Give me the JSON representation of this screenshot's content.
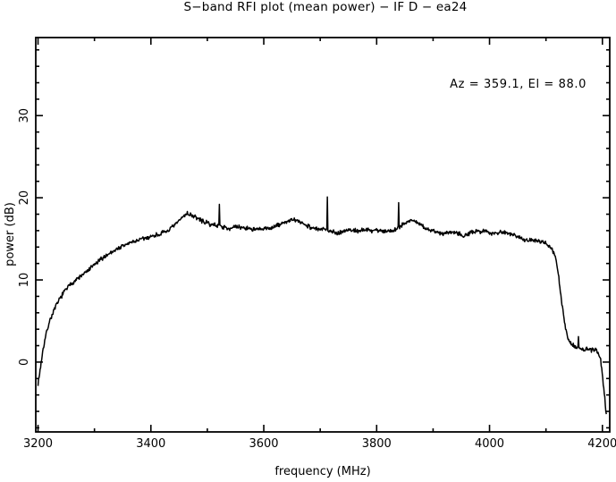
{
  "page": {
    "background": "#ffffff",
    "foreground": "#000000"
  },
  "chart_data": {
    "type": "line",
    "title": "S−band RFI plot (mean power) − IF D − ea24",
    "xlabel": "frequency (MHz)",
    "ylabel": "power (dB)",
    "annotation": "Az = 359.1, El = 88.0",
    "azimuth_deg": 359.1,
    "elevation_deg": 88.0,
    "antenna": "ea24",
    "if_channel": "D",
    "band": "S-band",
    "xlim": [
      3196,
      4213
    ],
    "ylim": [
      -8.5,
      39.5
    ],
    "xticks_major": [
      3200,
      3400,
      3600,
      3800,
      4000,
      4200
    ],
    "xtick_minor_step": 100,
    "yticks_major": [
      0,
      10,
      20,
      30
    ],
    "ytick_minor_step": 2,
    "grid": false,
    "legend": null,
    "line_color": "#000000",
    "series": [
      {
        "name": "mean power",
        "anchors": [
          [
            3200,
            -2.6
          ],
          [
            3202,
            -1.8
          ],
          [
            3205,
            -0.3
          ],
          [
            3209,
            1.6
          ],
          [
            3214,
            3.3
          ],
          [
            3220,
            4.9
          ],
          [
            3227,
            6.1
          ],
          [
            3234,
            7.1
          ],
          [
            3241,
            8.0
          ],
          [
            3249,
            8.8
          ],
          [
            3257,
            9.4
          ],
          [
            3265,
            9.9
          ],
          [
            3273,
            10.3
          ],
          [
            3281,
            10.7
          ],
          [
            3290,
            11.2
          ],
          [
            3299,
            11.8
          ],
          [
            3308,
            12.3
          ],
          [
            3317,
            12.8
          ],
          [
            3326,
            13.2
          ],
          [
            3335,
            13.6
          ],
          [
            3344,
            13.9
          ],
          [
            3353,
            14.2
          ],
          [
            3362,
            14.5
          ],
          [
            3371,
            14.7
          ],
          [
            3381,
            14.9
          ],
          [
            3391,
            15.1
          ],
          [
            3401,
            15.3
          ],
          [
            3411,
            15.5
          ],
          [
            3421,
            15.7
          ],
          [
            3430,
            16.0
          ],
          [
            3440,
            16.5
          ],
          [
            3450,
            17.2
          ],
          [
            3458,
            17.8
          ],
          [
            3464,
            18.1
          ],
          [
            3472,
            17.9
          ],
          [
            3480,
            17.6
          ],
          [
            3490,
            17.2
          ],
          [
            3500,
            16.9
          ],
          [
            3510,
            16.7
          ],
          [
            3520,
            16.6
          ],
          [
            3530,
            16.4
          ],
          [
            3540,
            16.3
          ],
          [
            3550,
            16.4
          ],
          [
            3560,
            16.4
          ],
          [
            3570,
            16.3
          ],
          [
            3580,
            16.2
          ],
          [
            3590,
            16.1
          ],
          [
            3600,
            16.2
          ],
          [
            3610,
            16.3
          ],
          [
            3620,
            16.5
          ],
          [
            3630,
            16.8
          ],
          [
            3640,
            17.1
          ],
          [
            3650,
            17.3
          ],
          [
            3658,
            17.2
          ],
          [
            3666,
            17.0
          ],
          [
            3675,
            16.7
          ],
          [
            3684,
            16.4
          ],
          [
            3693,
            16.2
          ],
          [
            3702,
            16.1
          ],
          [
            3711,
            16.2
          ],
          [
            3719,
            16.0
          ],
          [
            3727,
            15.7
          ],
          [
            3735,
            15.8
          ],
          [
            3744,
            16.0
          ],
          [
            3753,
            16.1
          ],
          [
            3762,
            16.0
          ],
          [
            3771,
            16.0
          ],
          [
            3780,
            16.1
          ],
          [
            3789,
            16.0
          ],
          [
            3798,
            16.1
          ],
          [
            3807,
            16.0
          ],
          [
            3816,
            15.9
          ],
          [
            3825,
            16.0
          ],
          [
            3834,
            16.2
          ],
          [
            3843,
            16.6
          ],
          [
            3852,
            17.0
          ],
          [
            3860,
            17.3
          ],
          [
            3868,
            17.1
          ],
          [
            3876,
            16.8
          ],
          [
            3884,
            16.4
          ],
          [
            3893,
            16.1
          ],
          [
            3902,
            15.9
          ],
          [
            3911,
            15.7
          ],
          [
            3920,
            15.7
          ],
          [
            3929,
            15.8
          ],
          [
            3938,
            15.9
          ],
          [
            3947,
            15.6
          ],
          [
            3954,
            15.4
          ],
          [
            3962,
            15.6
          ],
          [
            3971,
            15.8
          ],
          [
            3980,
            15.9
          ],
          [
            3989,
            16.0
          ],
          [
            3998,
            15.8
          ],
          [
            4007,
            15.7
          ],
          [
            4016,
            15.8
          ],
          [
            4025,
            15.8
          ],
          [
            4034,
            15.7
          ],
          [
            4043,
            15.5
          ],
          [
            4052,
            15.3
          ],
          [
            4060,
            15.0
          ],
          [
            4068,
            14.7
          ],
          [
            4076,
            14.9
          ],
          [
            4084,
            14.8
          ],
          [
            4091,
            14.6
          ],
          [
            4098,
            14.5
          ],
          [
            4105,
            14.2
          ],
          [
            4110,
            13.8
          ],
          [
            4114,
            13.3
          ],
          [
            4118,
            12.3
          ],
          [
            4122,
            10.6
          ],
          [
            4126,
            8.4
          ],
          [
            4130,
            6.2
          ],
          [
            4134,
            4.3
          ],
          [
            4138,
            3.1
          ],
          [
            4143,
            2.4
          ],
          [
            4149,
            2.0
          ],
          [
            4155,
            1.8
          ],
          [
            4161,
            1.6
          ],
          [
            4167,
            1.5
          ],
          [
            4173,
            1.6
          ],
          [
            4179,
            1.4
          ],
          [
            4185,
            1.5
          ],
          [
            4190,
            1.3
          ],
          [
            4194,
            1.0
          ],
          [
            4197,
            0.2
          ],
          [
            4199,
            -0.8
          ],
          [
            4201,
            -2.2
          ],
          [
            4203,
            -3.6
          ],
          [
            4205,
            -5.0
          ],
          [
            4206,
            -5.9
          ],
          [
            4207,
            -6.5
          ]
        ],
        "spikes": [
          [
            3521,
            19.2
          ],
          [
            3713,
            20.1
          ],
          [
            3839,
            19.4
          ],
          [
            4158,
            3.1
          ]
        ]
      }
    ],
    "noise": {
      "amplitude_db": 0.33,
      "samples": 1100,
      "seed": 7
    }
  }
}
